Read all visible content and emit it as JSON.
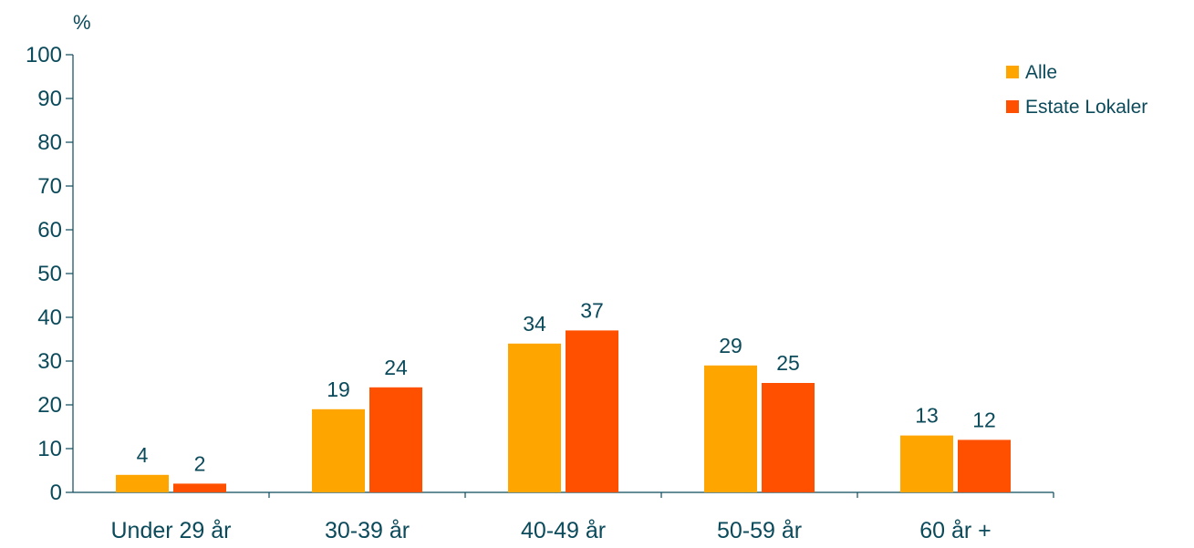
{
  "chart_data": {
    "type": "bar",
    "title": "",
    "xlabel": "",
    "ylabel": "%",
    "ylim": [
      0,
      100
    ],
    "yticks": [
      0,
      10,
      20,
      30,
      40,
      50,
      60,
      70,
      80,
      90,
      100
    ],
    "categories": [
      "Under 29 år",
      "30-39 år",
      "40-49 år",
      "50-59 år",
      "60 år +"
    ],
    "series": [
      {
        "name": "Alle",
        "color": "#FFA500",
        "values": [
          4,
          19,
          34,
          29,
          13
        ]
      },
      {
        "name": "Estate Lokaler",
        "color": "#FF5000",
        "values": [
          2,
          24,
          37,
          25,
          12
        ]
      }
    ],
    "legend_position": "top-right",
    "grid": false,
    "text_color": "#0b4a5a"
  }
}
